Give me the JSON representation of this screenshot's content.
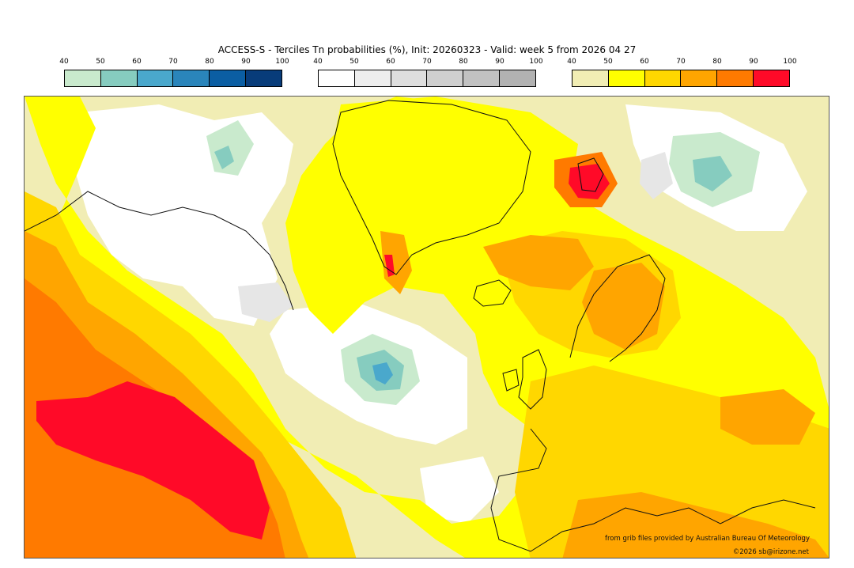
{
  "title": "ACCESS-S - Terciles Tn probabilities (%), Init: 20260323 - Valid: week 5 from 2026 04 27",
  "legends": [
    {
      "id": "below",
      "ticks": [
        "40",
        "50",
        "60",
        "70",
        "80",
        "90",
        "100"
      ],
      "colors": [
        "#c9eacd",
        "#86ccbf",
        "#4aa8cc",
        "#2a85bb",
        "#0b5ea3",
        "#083c7a"
      ]
    },
    {
      "id": "normal",
      "ticks": [
        "40",
        "50",
        "60",
        "70",
        "80",
        "90",
        "100"
      ],
      "colors": [
        "#ffffff",
        "#eeeeee",
        "#dedede",
        "#cfcfcf",
        "#c1c1c1",
        "#b2b2b2"
      ]
    },
    {
      "id": "above",
      "ticks": [
        "40",
        "50",
        "60",
        "70",
        "80",
        "90",
        "100"
      ],
      "colors": [
        "#f1edb4",
        "#ffff00",
        "#ffd700",
        "#ffa500",
        "#ff7a00",
        "#ff0a28"
      ]
    }
  ],
  "credits": {
    "source": "from grib files provided by Australian Bureau Of Meteorology",
    "copyright": "©2026 sb@irizone.net"
  },
  "palette": {
    "pale": "#f1edb4",
    "yellow": "#ffff00",
    "gold": "#ffd700",
    "orange": "#ffa500",
    "darkorange": "#ff7a00",
    "red": "#ff0a28",
    "lightgreen": "#c9eacd",
    "teal": "#86ccbf",
    "blue": "#4aa8cc",
    "lightgrey": "#e6e6e6",
    "coast": "#111111"
  }
}
